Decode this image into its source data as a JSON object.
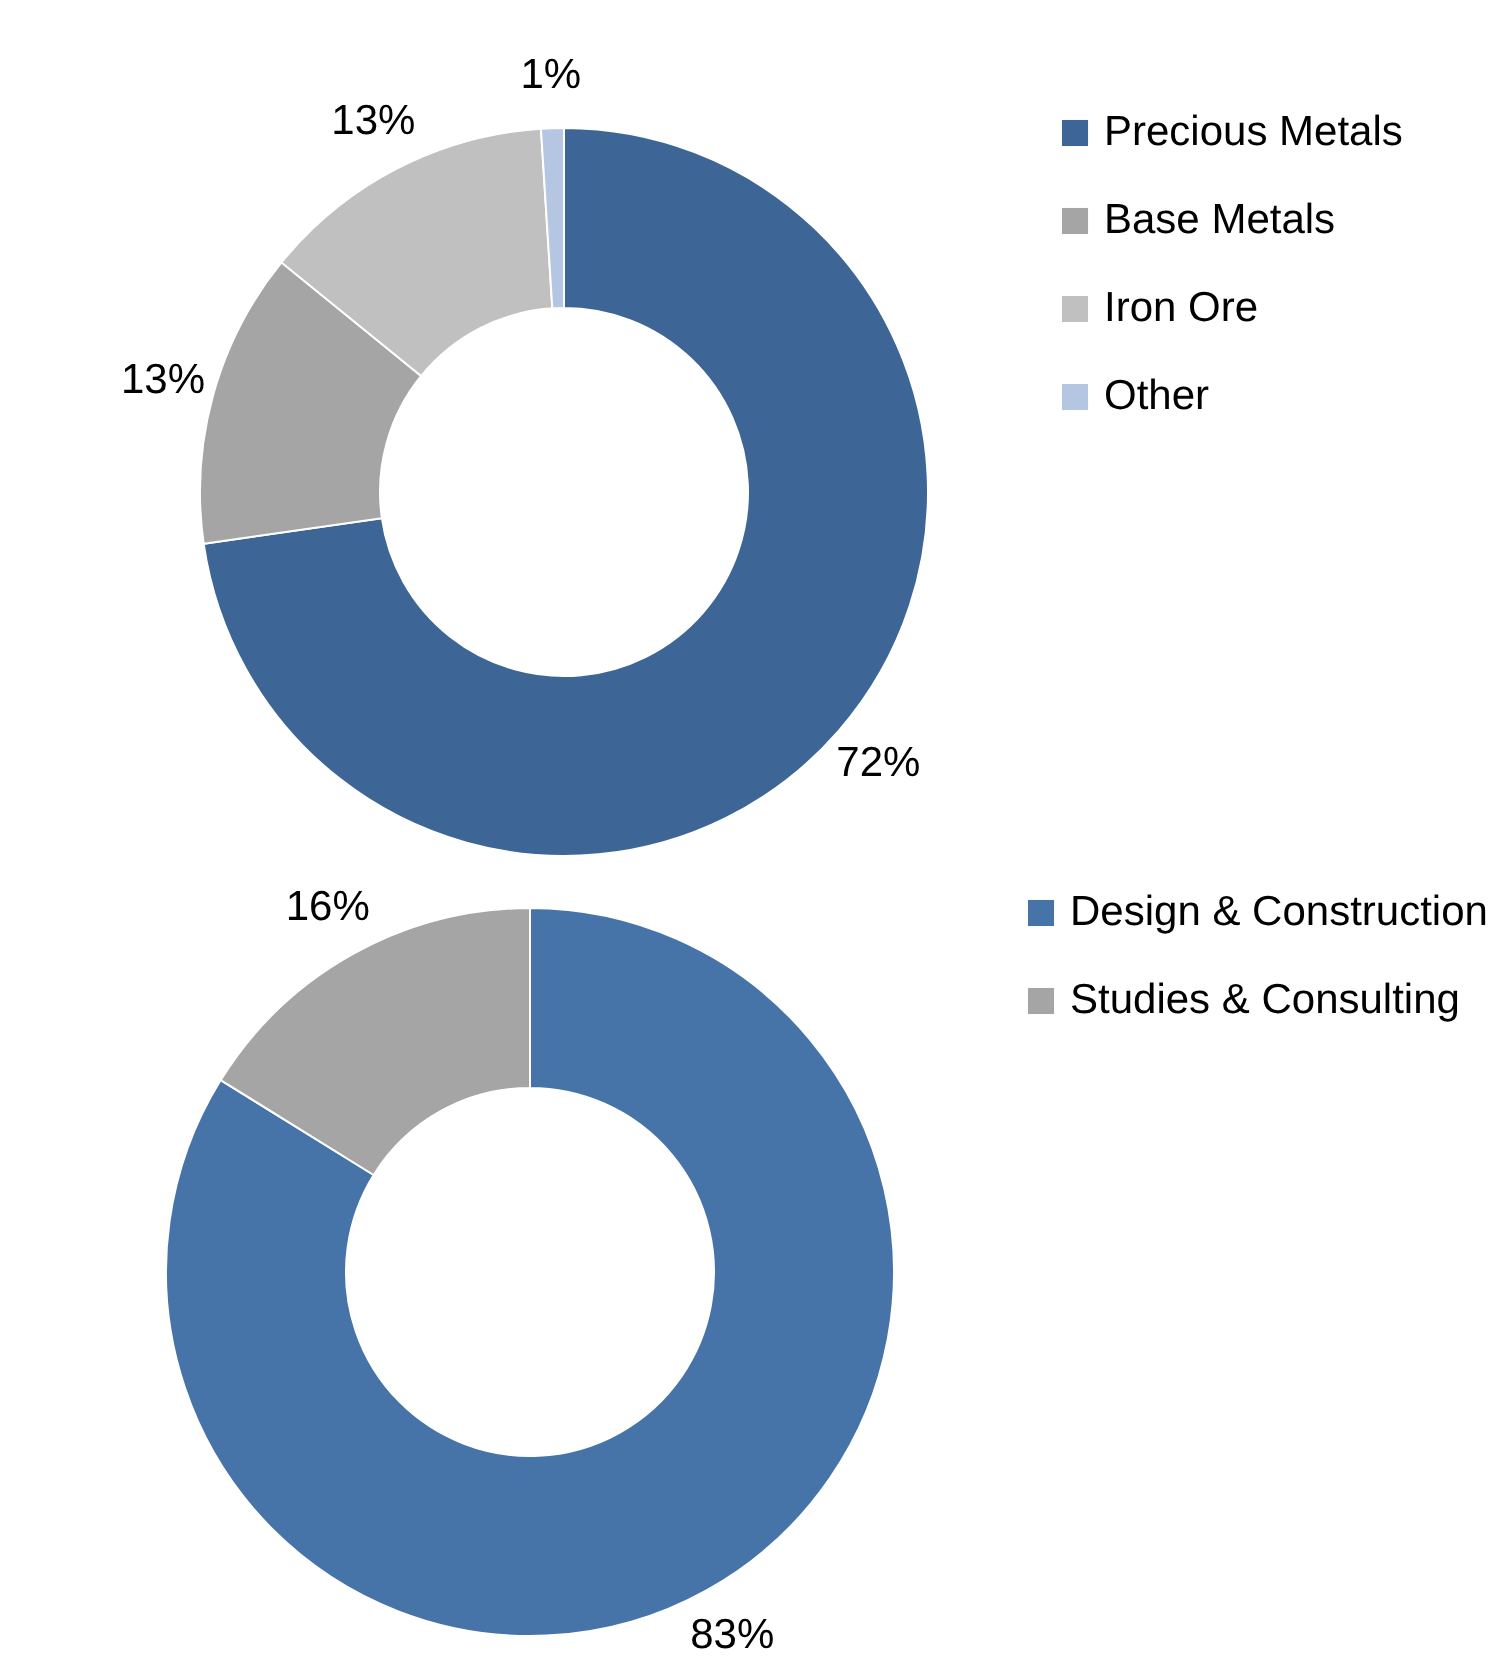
{
  "chart_data": [
    {
      "type": "donut",
      "categories": [
        "Precious Metals",
        "Base Metals",
        "Iron Ore",
        "Other"
      ],
      "values": [
        72,
        13,
        13,
        1
      ],
      "value_labels": [
        "72%",
        "13%",
        "13%",
        "1%"
      ],
      "colors": [
        "#3d6596",
        "#a5a5a5",
        "#c0c0c0",
        "#b4c6e2"
      ],
      "legend": "right"
    },
    {
      "type": "donut",
      "categories": [
        "Design & Construction",
        "Studies & Consulting"
      ],
      "values": [
        83,
        16
      ],
      "value_labels": [
        "83%",
        "16%"
      ],
      "colors": [
        "#4674a8",
        "#a5a5a5"
      ],
      "legend": "right"
    }
  ]
}
